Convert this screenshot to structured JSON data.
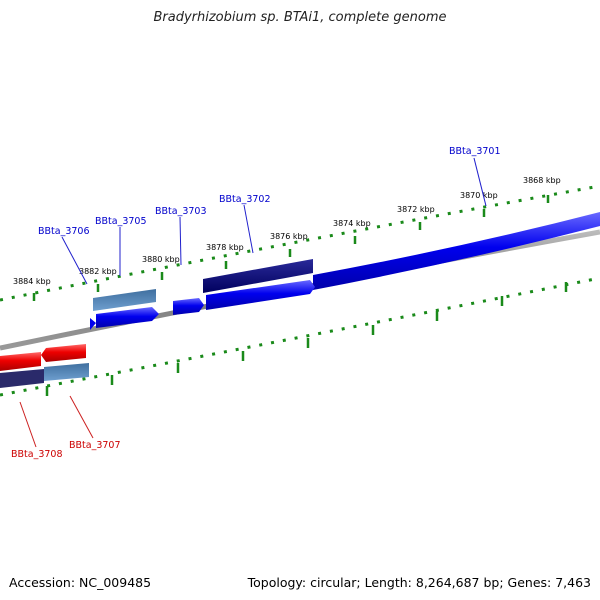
{
  "title": "Bradyrhizobium sp. BTAi1, complete genome",
  "footer": {
    "accession": "Accession: NC_009485",
    "summary": "Topology: circular; Length: 8,264,687 bp; Genes: 7,463"
  },
  "colors": {
    "forward_gene": "#0000ee",
    "forward_gene_dark": "#000077",
    "forward_gene_light": "#4f7fb0",
    "reverse_gene": "#ee0000",
    "reverse_gene_dark": "#222266",
    "backbone": "#888888",
    "tick": "#1a8a1a",
    "forward_label": "#0000cc",
    "reverse_label": "#cc0000"
  },
  "ruler_labels": [
    "3868 kbp",
    "3870 kbp",
    "3872 kbp",
    "3874 kbp",
    "3876 kbp",
    "3878 kbp",
    "3880 kbp",
    "3882 kbp",
    "3884 kbp"
  ],
  "gene_labels": {
    "forward": [
      "BBta_3701",
      "BBta_3702",
      "BBta_3703",
      "BBta_3705",
      "BBta_3706"
    ],
    "reverse": [
      "BBta_3707",
      "BBta_3708"
    ]
  }
}
